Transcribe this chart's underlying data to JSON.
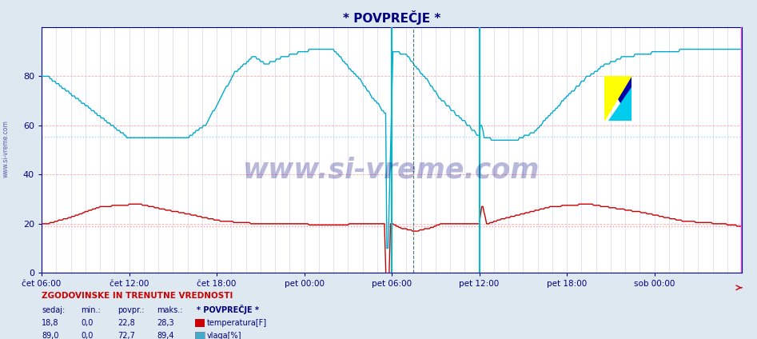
{
  "title": "* POVPREČJE *",
  "title_color": "#000080",
  "bg_color": "#dde8f0",
  "plot_bg_color": "#ffffff",
  "xlim": [
    0,
    576
  ],
  "ylim": [
    0,
    100
  ],
  "yticks": [
    0,
    20,
    40,
    60,
    80
  ],
  "xtick_labels": [
    "čet 06:00",
    "čet 12:00",
    "čet 18:00",
    "pet 00:00",
    "pet 06:00",
    "pet 12:00",
    "pet 18:00",
    "sob 00:00"
  ],
  "xtick_positions": [
    0,
    72,
    144,
    216,
    288,
    360,
    432,
    504
  ],
  "temp_color": "#cc0000",
  "humidity_color": "#00aacc",
  "temp_avg_line": 19.0,
  "humidity_avg_line": 55.5,
  "temp_avg_color": "#ff9999",
  "humidity_avg_color": "#99ddee",
  "vline1_x": 288,
  "vline1_color": "#00bbcc",
  "vline2_x": 306,
  "vline2_color": "#447777",
  "vline3_x": 360,
  "vline3_color": "#00bbcc",
  "vline4_x": 575,
  "vline4_color": "#ff44ff",
  "watermark": "www.si-vreme.com",
  "watermark_color": "#000080",
  "watermark_alpha": 0.28,
  "sidebar_text": "www.si-vreme.com",
  "sidebar_color": "#000080",
  "info_title": "ZGODOVINSKE IN TRENUTNE VREDNOSTI",
  "info_color": "#cc0000",
  "col_headers": [
    "sedaj:",
    "min.:",
    "povpr.:",
    "maks.:",
    "* POVPREČJE *"
  ],
  "col_header_color": "#000080",
  "row1_values": [
    "18,8",
    "0,0",
    "22,8",
    "28,3"
  ],
  "row1_label": "temperatura[F]",
  "row1_color": "#cc0000",
  "row2_values": [
    "89,0",
    "0,0",
    "72,7",
    "89,4"
  ],
  "row2_label": "vlaga[%]",
  "row2_color": "#44aacc"
}
